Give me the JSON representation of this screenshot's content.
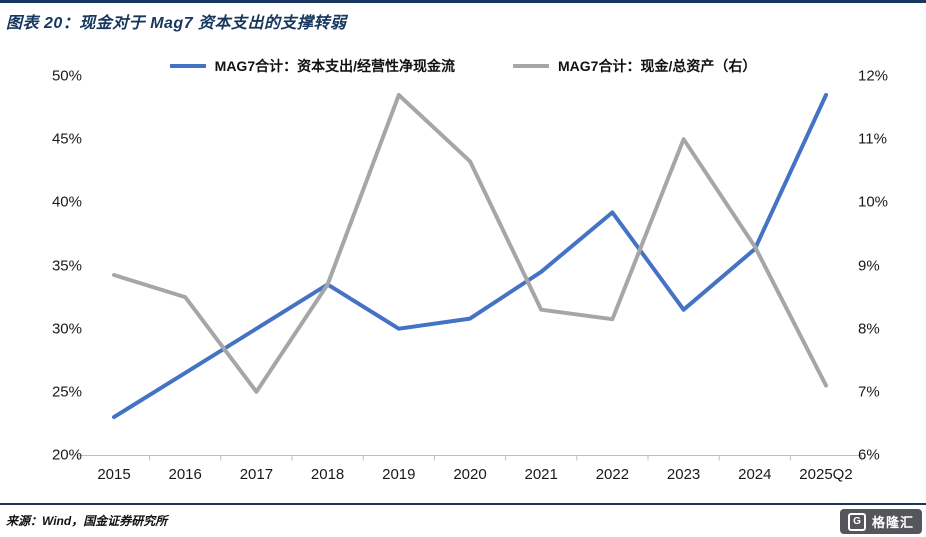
{
  "header": {
    "title": "图表 20：现金对于 Mag7 资本支出的支撑转弱"
  },
  "accent_color": "#17375E",
  "chart_data": {
    "type": "line",
    "title": "图表 20：现金对于 Mag7 资本支出的支撑转弱",
    "categories": [
      "2015",
      "2016",
      "2017",
      "2018",
      "2019",
      "2020",
      "2021",
      "2022",
      "2023",
      "2024",
      "2025Q2"
    ],
    "series": [
      {
        "name": "MAG7合计：资本支出/经营性净现金流",
        "axis": "left",
        "color": "#4472C4",
        "values": [
          23.0,
          26.5,
          30.0,
          33.5,
          30.0,
          30.8,
          34.5,
          39.2,
          31.5,
          36.3,
          48.5
        ]
      },
      {
        "name": "MAG7合计：现金/总资产（右）",
        "axis": "right",
        "color": "#A6A6A6",
        "values": [
          8.85,
          8.5,
          7.0,
          8.7,
          11.7,
          10.65,
          8.3,
          8.15,
          11.0,
          9.3,
          7.1
        ]
      }
    ],
    "left_axis": {
      "min": 20,
      "max": 50,
      "step": 5,
      "unit": "%",
      "ticks": [
        "50%",
        "45%",
        "40%",
        "35%",
        "30%",
        "25%",
        "20%"
      ]
    },
    "right_axis": {
      "min": 6,
      "max": 12,
      "step": 1,
      "unit": "%",
      "ticks": [
        "12%",
        "11%",
        "10%",
        "9%",
        "8%",
        "7%",
        "6%"
      ]
    },
    "grid": false,
    "legend_position": "top"
  },
  "footer": {
    "source": "来源：Wind，国金证券研究所"
  },
  "watermark": {
    "icon": "G",
    "label": "格隆汇"
  }
}
